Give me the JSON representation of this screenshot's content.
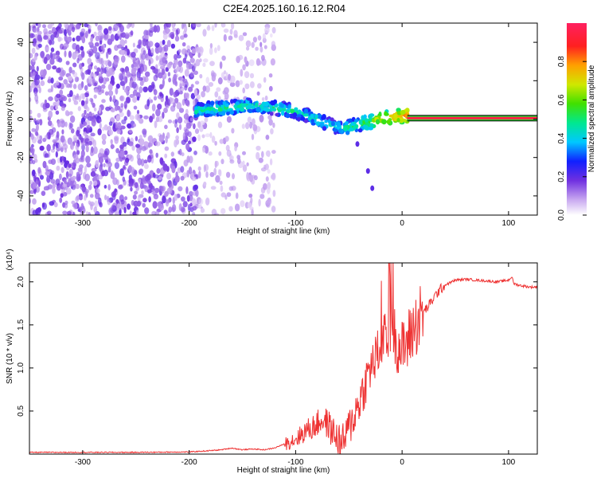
{
  "title": "C2E4.2025.160.16.12.R04",
  "chart_data": [
    {
      "type": "heatmap",
      "xlabel": "Height of straight line (km)",
      "ylabel": "Frequency (Hz)",
      "xlim": [
        -350,
        127
      ],
      "ylim": [
        -50,
        50
      ],
      "xticks": [
        -300,
        -200,
        -100,
        0,
        100
      ],
      "xtick_labels": [
        "-300",
        "-200",
        "-100",
        "0",
        "100"
      ],
      "yticks": [
        -40,
        -20,
        0,
        20,
        40
      ],
      "ytick_labels": [
        "-40",
        "-20",
        "0",
        "20",
        "40"
      ],
      "colorbar": {
        "label": "Normalized spectral amplitude",
        "range": [
          0,
          1
        ],
        "ticks": [
          0.0,
          0.2,
          0.4,
          0.6,
          0.8
        ],
        "tick_labels": [
          "0.0",
          "0.2",
          "0.4",
          "0.6",
          "0.8"
        ]
      },
      "noise_regions": [
        {
          "x": [
            -350,
            -192
          ],
          "y": [
            -50,
            50
          ],
          "density": "high"
        },
        {
          "x": [
            -192,
            -120
          ],
          "y": [
            -50,
            50
          ],
          "density": "low"
        }
      ],
      "signal_track": {
        "x": [
          -195,
          -185,
          -175,
          -160,
          -145,
          -130,
          -115,
          -100,
          -90,
          -80,
          -70,
          -60,
          -50,
          -40,
          -30,
          -20,
          -10,
          0,
          5
        ],
        "y": [
          4,
          5,
          5.5,
          6,
          7,
          6.5,
          5.5,
          4,
          2,
          0,
          -2.5,
          -4.5,
          -4.5,
          -2.5,
          -1.5,
          0,
          1,
          1.5,
          1.5
        ],
        "amplitude": [
          0.45,
          0.5,
          0.5,
          0.5,
          0.5,
          0.45,
          0.5,
          0.45,
          0.45,
          0.5,
          0.45,
          0.45,
          0.5,
          0.55,
          0.6,
          0.7,
          0.75,
          0.8,
          0.85
        ]
      },
      "steady_tone": {
        "x": [
          5,
          127
        ],
        "y": 0.5,
        "amplitude": 0.95
      },
      "outliers": [
        {
          "x": -32,
          "y": -27
        },
        {
          "x": -42,
          "y": -13
        },
        {
          "x": -28,
          "y": -36
        }
      ]
    },
    {
      "type": "line",
      "xlabel": "Height of straight line (km)",
      "ylabel": "SNR (10 * v/v)",
      "scale_label": "(x10⁴)",
      "xlim": [
        -350,
        127
      ],
      "ylim": [
        0,
        2.22
      ],
      "xticks": [
        -300,
        -200,
        -100,
        0,
        100
      ],
      "xtick_labels": [
        "-300",
        "-200",
        "-100",
        "0",
        "100"
      ],
      "yticks": [
        0.5,
        1.0,
        1.5,
        2.0
      ],
      "ytick_labels": [
        "0.5",
        "1.0",
        "1.5",
        "2.0"
      ],
      "color": "#ee3333",
      "series": [
        {
          "x": [
            -350,
            -300,
            -250,
            -200,
            -180,
            -170,
            -160,
            -150,
            -140,
            -130,
            -120,
            -110,
            -100,
            -95,
            -90,
            -85,
            -80,
            -75,
            -70,
            -65,
            -60,
            -57,
            -55,
            -50,
            -45,
            -40,
            -35,
            -30,
            -25,
            -20,
            -15,
            -12,
            -10,
            -8,
            -5,
            0,
            5,
            10,
            15,
            20,
            25,
            30,
            35,
            40,
            50,
            60,
            70,
            80,
            90,
            100,
            103,
            105,
            110,
            115,
            120,
            127
          ],
          "y": [
            0.02,
            0.02,
            0.02,
            0.025,
            0.04,
            0.05,
            0.07,
            0.05,
            0.06,
            0.05,
            0.07,
            0.12,
            0.18,
            0.22,
            0.28,
            0.3,
            0.35,
            0.4,
            0.35,
            0.25,
            0.18,
            0.12,
            0.15,
            0.3,
            0.45,
            0.62,
            0.8,
            1.0,
            1.1,
            1.25,
            1.35,
            1.4,
            1.6,
            1.45,
            1.3,
            1.2,
            1.3,
            1.45,
            1.55,
            1.65,
            1.72,
            1.82,
            1.9,
            1.96,
            2.02,
            2.03,
            2.02,
            2.01,
            2.0,
            2.02,
            2.06,
            1.98,
            1.96,
            1.95,
            1.94,
            1.94
          ]
        }
      ]
    }
  ]
}
